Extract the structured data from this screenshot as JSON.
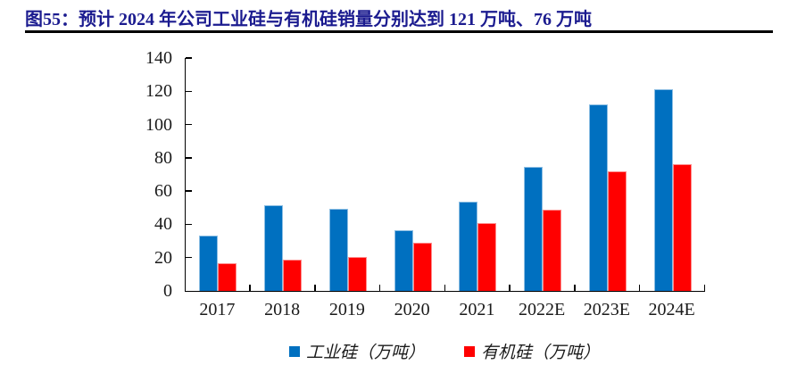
{
  "title": "图55：预计 2024 年公司工业硅与有机硅销量分别达到 121 万吨、76 万吨",
  "colors": {
    "title_text": "#1b1b8f",
    "rule": "#000000",
    "axis": "#000000",
    "series_blue": "#0070C0",
    "series_red": "#FF0000"
  },
  "chart_data": {
    "type": "bar",
    "categories": [
      "2017",
      "2018",
      "2019",
      "2020",
      "2021",
      "2022E",
      "2023E",
      "2024E"
    ],
    "series": [
      {
        "name": "工业硅（万吨）",
        "color": "#0070C0",
        "values": [
          33,
          51.5,
          49.5,
          36.5,
          53.5,
          74.5,
          112,
          121
        ]
      },
      {
        "name": "有机硅（万吨）",
        "color": "#FF0000",
        "values": [
          16.5,
          19,
          20.5,
          29,
          41,
          49,
          72,
          76
        ]
      }
    ],
    "ylim": [
      0,
      140
    ],
    "yticks": [
      0,
      20,
      40,
      60,
      80,
      100,
      120,
      140
    ],
    "xlabel": "",
    "ylabel": "",
    "grid": false,
    "legend_position": "bottom"
  }
}
